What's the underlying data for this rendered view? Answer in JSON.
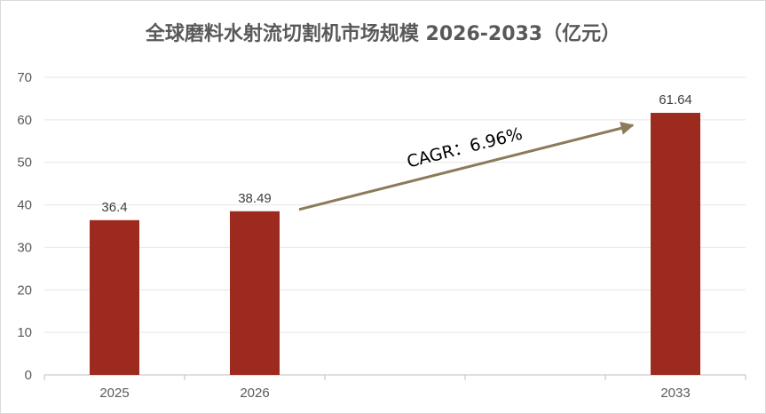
{
  "chart_data": {
    "type": "bar",
    "title": "全球磨料水射流切割机市场规模 2026-2033（亿元）",
    "categories": [
      "2025",
      "2026",
      "",
      "",
      "2033"
    ],
    "values": [
      36.4,
      38.49,
      null,
      null,
      61.64
    ],
    "data_labels": [
      "36.4",
      "38.49",
      "",
      "",
      "61.64"
    ],
    "y_ticks": [
      "0",
      "10",
      "20",
      "30",
      "40",
      "50",
      "60",
      "70"
    ],
    "ylim": [
      0,
      70
    ],
    "grid": true,
    "bar_color": "#9c2a1f",
    "annotation": {
      "text": "CAGR：6.96%",
      "arrow_color": "#8c7b5a",
      "from_category": 1,
      "to_category": 4
    }
  }
}
